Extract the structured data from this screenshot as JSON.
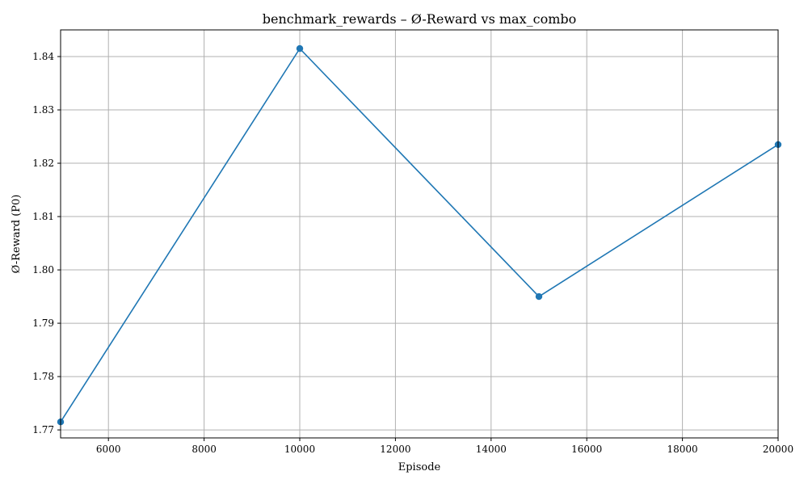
{
  "chart_data": {
    "type": "line",
    "title": "benchmark_rewards – Ø-Reward vs max_combo",
    "xlabel": "Episode",
    "ylabel": "Ø-Reward (P0)",
    "xlim": [
      5000,
      20000
    ],
    "ylim": [
      1.7685,
      1.845
    ],
    "xticks": [
      6000,
      8000,
      10000,
      12000,
      14000,
      16000,
      18000,
      20000
    ],
    "xtick_labels": [
      "6000",
      "8000",
      "10000",
      "12000",
      "14000",
      "16000",
      "18000",
      "20000"
    ],
    "yticks": [
      1.77,
      1.78,
      1.79,
      1.8,
      1.81,
      1.82,
      1.83,
      1.84
    ],
    "ytick_labels": [
      "1.77",
      "1.78",
      "1.79",
      "1.80",
      "1.81",
      "1.82",
      "1.83",
      "1.84"
    ],
    "grid": true,
    "series": [
      {
        "color": "#1f77b4",
        "marker": "circle",
        "x": [
          5000,
          10000,
          15000,
          20000
        ],
        "y": [
          1.7715,
          1.8415,
          1.795,
          1.8235
        ]
      }
    ]
  }
}
